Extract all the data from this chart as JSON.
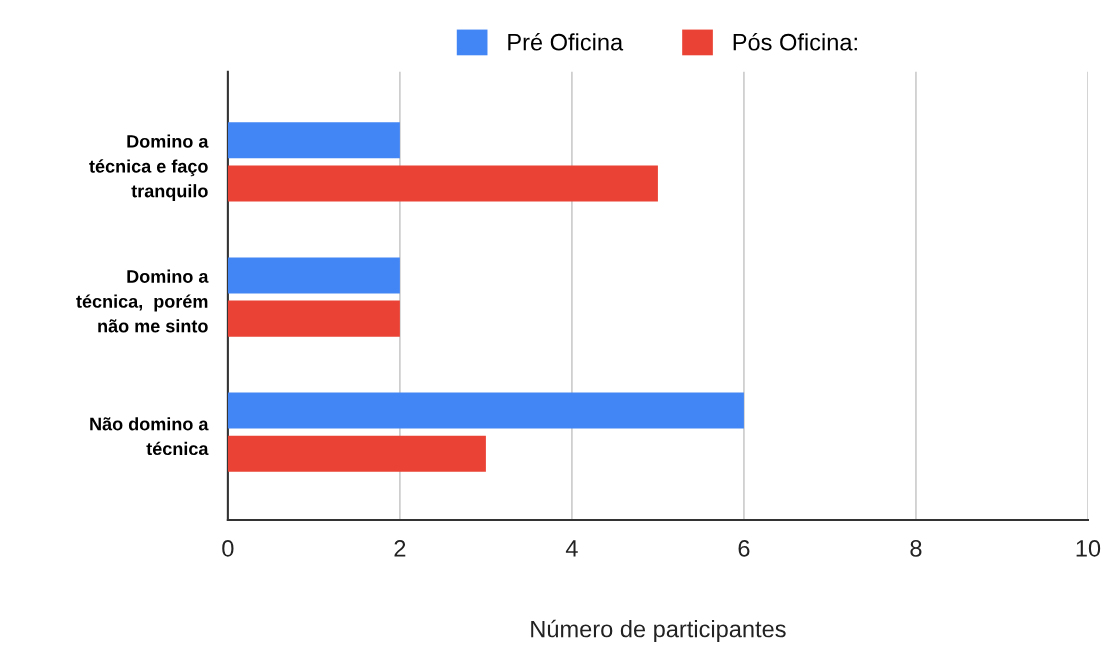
{
  "chart_data": {
    "type": "bar",
    "orientation": "horizontal",
    "xlabel": "Número de participantes",
    "categories": [
      "Domino a\ntécnica e faço\ntranquilo",
      "Domino a\ntécnica,  porém\nnão me sinto",
      "Não domino a\ntécnica"
    ],
    "series": [
      {
        "name": "Pré Oficina",
        "color": "#4285f4",
        "values": [
          2,
          2,
          6
        ]
      },
      {
        "name": "Pós Oficina:",
        "color": "#ea4335",
        "values": [
          5,
          2,
          3
        ]
      }
    ],
    "xlim": [
      0,
      10
    ],
    "xticks": [
      0,
      2,
      4,
      6,
      8,
      10
    ],
    "grid": "x",
    "legend": "top"
  }
}
